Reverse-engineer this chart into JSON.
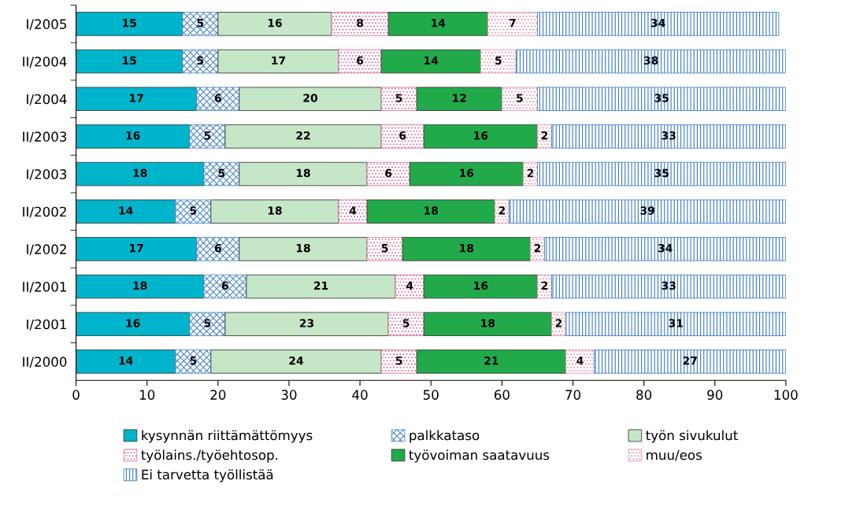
{
  "chart_data": {
    "type": "bar",
    "orientation": "horizontal",
    "stacked": true,
    "data_labels": true,
    "legend": "bottom",
    "grid": false,
    "categories": [
      "I/2005",
      "II/2004",
      "I/2004",
      "II/2003",
      "I/2003",
      "II/2002",
      "I/2002",
      "II/2001",
      "I/2001",
      "II/2000"
    ],
    "xlim": [
      0,
      100
    ],
    "xticks": [
      0,
      10,
      20,
      30,
      40,
      50,
      60,
      70,
      80,
      90,
      100
    ],
    "series": [
      {
        "name": "kysynnän riittämättömyys",
        "color": "#00b4cc",
        "values": [
          15,
          15,
          17,
          16,
          18,
          14,
          17,
          18,
          16,
          14
        ]
      },
      {
        "name": "palkkataso",
        "color": "#4a86c8",
        "values": [
          5,
          5,
          6,
          5,
          5,
          5,
          6,
          6,
          5,
          5
        ]
      },
      {
        "name": "työn sivukulut",
        "color": "#c6e6c8",
        "values": [
          16,
          17,
          20,
          22,
          18,
          18,
          18,
          21,
          23,
          24
        ]
      },
      {
        "name": "työlains./työehtosop.",
        "color": "#d86a96",
        "values": [
          8,
          6,
          5,
          6,
          6,
          4,
          5,
          4,
          5,
          5
        ]
      },
      {
        "name": "työvoiman saatavuus",
        "color": "#22aa4a",
        "values": [
          14,
          14,
          12,
          16,
          16,
          18,
          18,
          16,
          18,
          21
        ]
      },
      {
        "name": "muu/eos",
        "color": "#e890a8",
        "values": [
          7,
          5,
          5,
          2,
          2,
          2,
          2,
          2,
          2,
          4
        ]
      },
      {
        "name": "Ei tarvetta työllistää",
        "color": "#3a7ac8",
        "values": [
          34,
          38,
          35,
          33,
          35,
          39,
          34,
          33,
          31,
          27
        ]
      }
    ]
  }
}
